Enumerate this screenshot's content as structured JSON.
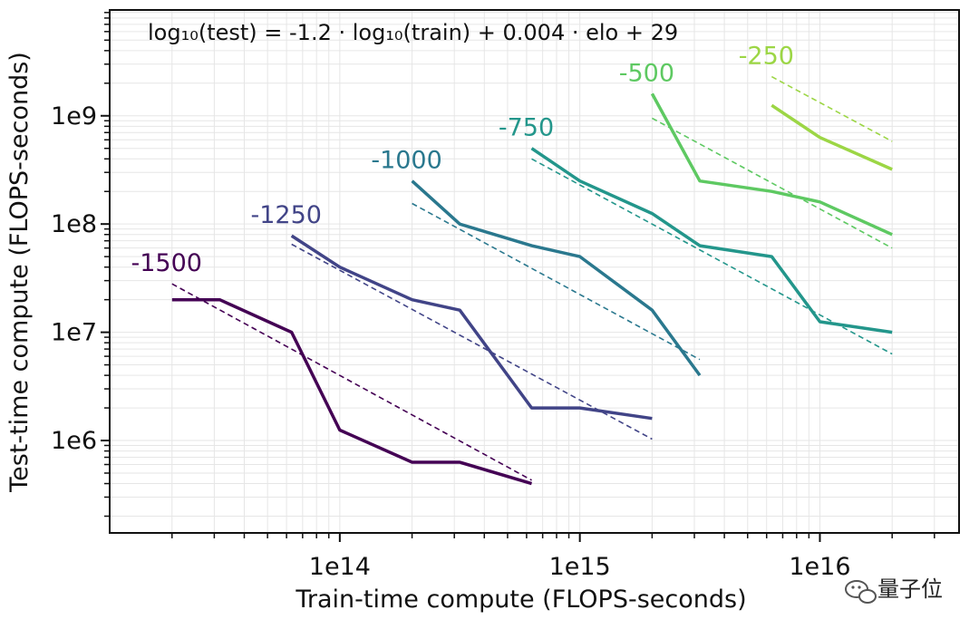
{
  "chart_data": {
    "type": "line",
    "title": "",
    "xlabel": "Train-time compute (FLOPS-seconds)",
    "ylabel": "Test-time compute (FLOPS-seconds)",
    "xscale": "log",
    "yscale": "log",
    "xlim": [
      11000000000000.0,
      3.8e+16
    ],
    "ylim": [
      140000.0,
      9500000000.0
    ],
    "x_ticks": [
      {
        "value": 100000000000000.0,
        "label": "1e14"
      },
      {
        "value": 1000000000000000.0,
        "label": "1e15"
      },
      {
        "value": 1e+16,
        "label": "1e16"
      }
    ],
    "y_ticks": [
      {
        "value": 1000000.0,
        "label": "1e6"
      },
      {
        "value": 10000000.0,
        "label": "1e7"
      },
      {
        "value": 100000000.0,
        "label": "1e8"
      },
      {
        "value": 1000000000.0,
        "label": "1e9"
      }
    ],
    "grid": true,
    "annotation": "log₁₀(test) = -1.2 · log₁₀(train) + 0.004 · elo + 29",
    "series": [
      {
        "name": "-1500",
        "color": "#440154",
        "x": [
          20000000000000.0,
          31600000000000.0,
          63000000000000.0,
          100000000000000.0,
          200000000000000.0,
          316000000000000.0,
          630000000000000.0
        ],
        "y": [
          20000000.0,
          20000000.0,
          10000000.0,
          1250000.0,
          630000.0,
          630000.0,
          400000.0
        ],
        "fit_x": [
          20000000000000.0,
          630000000000000.0
        ],
        "fit_y": [
          28000000.0,
          430000.0
        ]
      },
      {
        "name": "-1250",
        "color": "#414487",
        "x": [
          63000000000000.0,
          100000000000000.0,
          200000000000000.0,
          316000000000000.0,
          630000000000000.0,
          1000000000000000.0,
          2000000000000000.0
        ],
        "y": [
          78000000.0,
          40000000.0,
          20000000.0,
          16000000.0,
          2000000.0,
          2000000.0,
          1600000.0
        ],
        "fit_x": [
          63000000000000.0,
          2000000000000000.0
        ],
        "fit_y": [
          65000000.0,
          1030000.0
        ]
      },
      {
        "name": "-1000",
        "color": "#2a788e",
        "x": [
          200000000000000.0,
          316000000000000.0,
          630000000000000.0,
          1000000000000000.0,
          2000000000000000.0,
          3160000000000000.0
        ],
        "y": [
          250000000.0,
          100000000.0,
          63000000.0,
          50000000.0,
          16000000.0,
          4000000.0
        ],
        "fit_x": [
          200000000000000.0,
          3160000000000000.0
        ],
        "fit_y": [
          155000000.0,
          5600000.0
        ]
      },
      {
        "name": "-750",
        "color": "#23968b",
        "x": [
          630000000000000.0,
          1000000000000000.0,
          2000000000000000.0,
          3160000000000000.0,
          6300000000000000.0,
          1e+16,
          2e+16
        ],
        "y": [
          500000000.0,
          250000000.0,
          125000000.0,
          63000000.0,
          50000000.0,
          12500000.0,
          10000000.0
        ],
        "fit_x": [
          630000000000000.0,
          2e+16
        ],
        "fit_y": [
          400000000.0,
          6300000.0
        ]
      },
      {
        "name": "-500",
        "color": "#5ec962",
        "x": [
          2000000000000000.0,
          3160000000000000.0,
          6300000000000000.0,
          1e+16,
          2e+16
        ],
        "y": [
          1600000000.0,
          250000000.0,
          200000000.0,
          160000000.0,
          80000000.0
        ],
        "fit_x": [
          2000000000000000.0,
          2e+16
        ],
        "fit_y": [
          950000000.0,
          60000000.0
        ]
      },
      {
        "name": "-250",
        "color": "#9cd645",
        "x": [
          6300000000000000.0,
          1e+16,
          2e+16
        ],
        "y": [
          1250000000.0,
          630000000.0,
          320000000.0
        ],
        "fit_x": [
          6300000000000000.0,
          2e+16
        ],
        "fit_y": [
          2300000000.0,
          580000000.0
        ]
      }
    ]
  },
  "watermark": {
    "text": "量子位",
    "icon": "wechat-icon"
  }
}
